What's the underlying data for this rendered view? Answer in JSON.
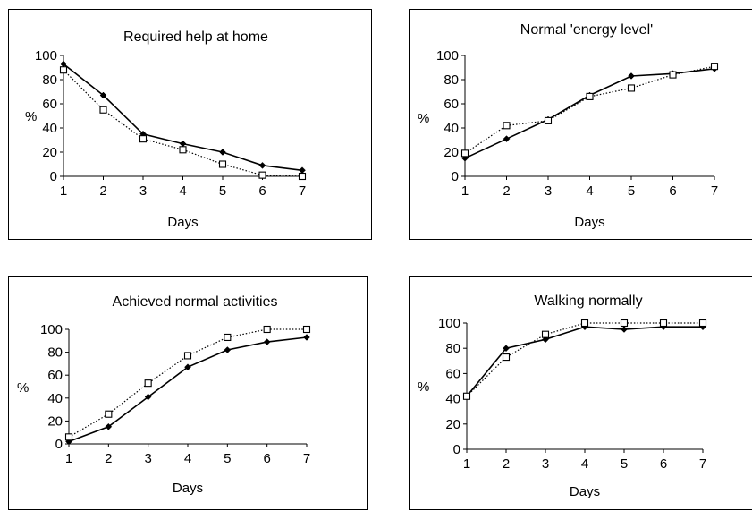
{
  "chart_data": [
    {
      "type": "line",
      "title": "Required help at home",
      "xlabel": "Days",
      "ylabel": "%",
      "ylim": [
        0,
        100
      ],
      "yticks": [
        "0",
        "20",
        "40",
        "60",
        "80",
        "100"
      ],
      "categories": [
        "1",
        "2",
        "3",
        "4",
        "5",
        "6",
        "7"
      ],
      "series": [
        {
          "values": [
            93,
            67,
            35,
            27,
            20,
            9,
            5
          ],
          "style": "solid",
          "marker": "filled-diamond",
          "color": "#000000"
        },
        {
          "values": [
            88,
            55,
            31,
            22,
            10,
            1,
            0
          ],
          "style": "dotted",
          "marker": "open-square",
          "color": "#000000"
        }
      ]
    },
    {
      "type": "line",
      "title": "Normal 'energy level'",
      "xlabel": "Days",
      "ylabel": "%",
      "ylim": [
        0,
        100
      ],
      "yticks": [
        "0",
        "20",
        "40",
        "60",
        "80",
        "100"
      ],
      "categories": [
        "1",
        "2",
        "3",
        "4",
        "5",
        "6",
        "7"
      ],
      "series": [
        {
          "values": [
            15,
            31,
            47,
            67,
            83,
            85,
            89
          ],
          "style": "solid",
          "marker": "filled-diamond",
          "color": "#000000"
        },
        {
          "values": [
            19,
            42,
            46,
            66,
            73,
            84,
            91
          ],
          "style": "dotted",
          "marker": "open-square",
          "color": "#000000"
        }
      ]
    },
    {
      "type": "line",
      "title": "Achieved normal  activities",
      "xlabel": "Days",
      "ylabel": "%",
      "ylim": [
        0,
        100
      ],
      "yticks": [
        "0",
        "20",
        "40",
        "60",
        "80",
        "100"
      ],
      "categories": [
        "1",
        "2",
        "3",
        "4",
        "5",
        "6",
        "7"
      ],
      "series": [
        {
          "values": [
            2,
            15,
            41,
            67,
            82,
            89,
            93
          ],
          "style": "solid",
          "marker": "filled-diamond",
          "color": "#000000"
        },
        {
          "values": [
            6,
            26,
            53,
            77,
            93,
            100,
            100
          ],
          "style": "dotted",
          "marker": "open-square",
          "color": "#000000"
        }
      ]
    },
    {
      "type": "line",
      "title": "Walking normally",
      "xlabel": "Days",
      "ylabel": "%",
      "ylim": [
        0,
        100
      ],
      "yticks": [
        "0",
        "20",
        "40",
        "60",
        "80",
        "100"
      ],
      "categories": [
        "1",
        "2",
        "3",
        "4",
        "5",
        "6",
        "7"
      ],
      "series": [
        {
          "values": [
            42,
            80,
            87,
            97,
            95,
            97,
            97
          ],
          "style": "solid",
          "marker": "filled-diamond",
          "color": "#000000"
        },
        {
          "values": [
            42,
            73,
            91,
            100,
            100,
            100,
            100
          ],
          "style": "dotted",
          "marker": "open-square",
          "color": "#000000"
        }
      ]
    }
  ]
}
